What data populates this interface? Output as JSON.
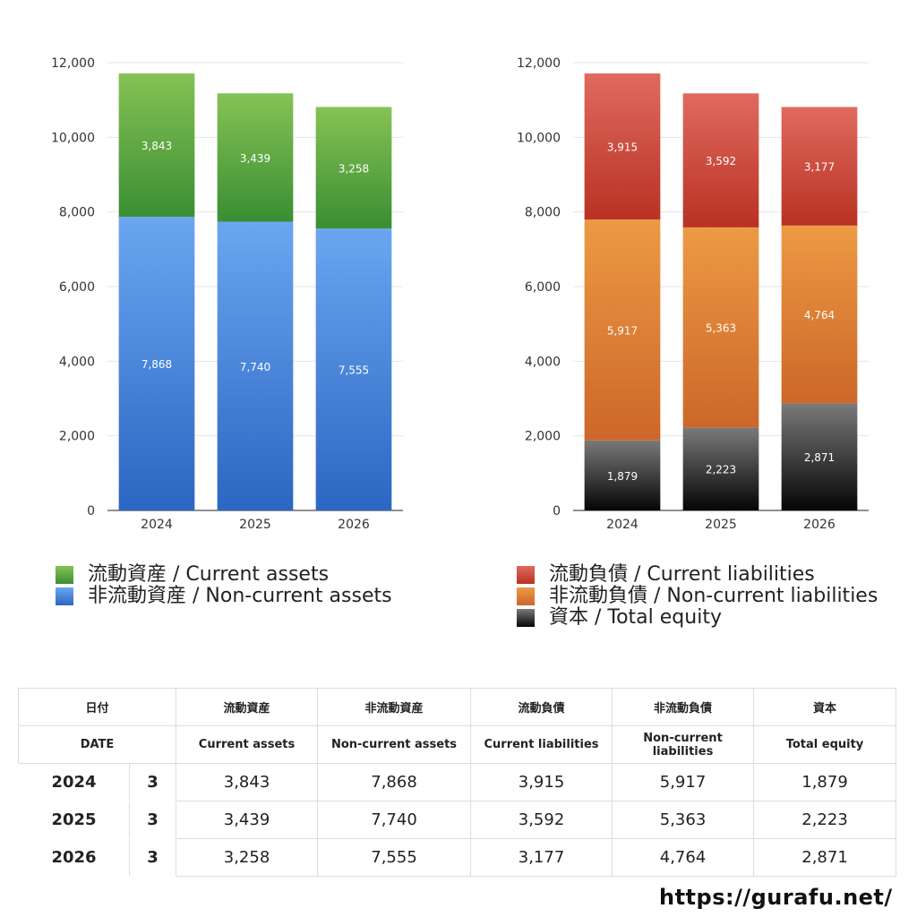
{
  "colors": {
    "current_assets": [
      "#86c255",
      "#3a8e33"
    ],
    "non_current_assets": [
      "#6aa6f0",
      "#2c66c2"
    ],
    "current_liabilities": [
      "#e06a5e",
      "#b83224"
    ],
    "non_current_liabilities": [
      "#ec9a44",
      "#cc6729"
    ],
    "total_equity": [
      "#7a7a7a",
      "#050505"
    ]
  },
  "chart_data": [
    {
      "type": "bar",
      "stacked": true,
      "categories": [
        "2024",
        "2025",
        "2026"
      ],
      "ylim": [
        0,
        12000
      ],
      "yticks": [
        "0",
        "2,000",
        "4,000",
        "6,000",
        "8,000",
        "10,000",
        "12,000"
      ],
      "grid": true,
      "series": [
        {
          "name": "非流動資産 / Non-current assets",
          "color_key": "non_current_assets",
          "values": [
            7868,
            7740,
            7555
          ],
          "labels": [
            "7,868",
            "7,740",
            "7,555"
          ]
        },
        {
          "name": "流動資産 / Current assets",
          "color_key": "current_assets",
          "values": [
            3843,
            3439,
            3258
          ],
          "labels": [
            "3,843",
            "3,439",
            "3,258"
          ]
        }
      ]
    },
    {
      "type": "bar",
      "stacked": true,
      "categories": [
        "2024",
        "2025",
        "2026"
      ],
      "ylim": [
        0,
        12000
      ],
      "yticks": [
        "0",
        "2,000",
        "4,000",
        "6,000",
        "8,000",
        "10,000",
        "12,000"
      ],
      "grid": true,
      "series": [
        {
          "name": "資本 / Total equity",
          "color_key": "total_equity",
          "values": [
            1879,
            2223,
            2871
          ],
          "labels": [
            "1,879",
            "2,223",
            "2,871"
          ]
        },
        {
          "name": "非流動負債 / Non-current liabilities",
          "color_key": "non_current_liabilities",
          "values": [
            5917,
            5363,
            4764
          ],
          "labels": [
            "5,917",
            "5,363",
            "4,764"
          ]
        },
        {
          "name": "流動負債 / Current liabilities",
          "color_key": "current_liabilities",
          "values": [
            3915,
            3592,
            3177
          ],
          "labels": [
            "3,915",
            "3,592",
            "3,177"
          ]
        }
      ]
    }
  ],
  "legend_left": [
    {
      "label": "流動資産 / Current assets",
      "color_key": "current_assets"
    },
    {
      "label": "非流動資産 / Non-current assets",
      "color_key": "non_current_assets"
    }
  ],
  "legend_right": [
    {
      "label": "流動負債 / Current liabilities",
      "color_key": "current_liabilities"
    },
    {
      "label": "非流動負債 / Non-current liabilities",
      "color_key": "non_current_liabilities"
    },
    {
      "label": "資本 / Total equity",
      "color_key": "total_equity"
    }
  ],
  "table": {
    "header_jp": [
      "日付",
      "流動資産",
      "非流動資産",
      "流動負債",
      "非流動負債",
      "資本"
    ],
    "header_en": [
      "DATE",
      "Current assets",
      "Non-current assets",
      "Current liabilities",
      "Non-current liabilities",
      "Total equity"
    ],
    "rows": [
      {
        "year": "2024",
        "month": "3",
        "values": [
          "3,843",
          "7,868",
          "3,915",
          "5,917",
          "1,879"
        ]
      },
      {
        "year": "2025",
        "month": "3",
        "values": [
          "3,439",
          "7,740",
          "3,592",
          "5,363",
          "2,223"
        ]
      },
      {
        "year": "2026",
        "month": "3",
        "values": [
          "3,258",
          "7,555",
          "3,177",
          "4,764",
          "2,871"
        ]
      }
    ]
  },
  "footer": {
    "url": "https://gurafu.net/"
  }
}
